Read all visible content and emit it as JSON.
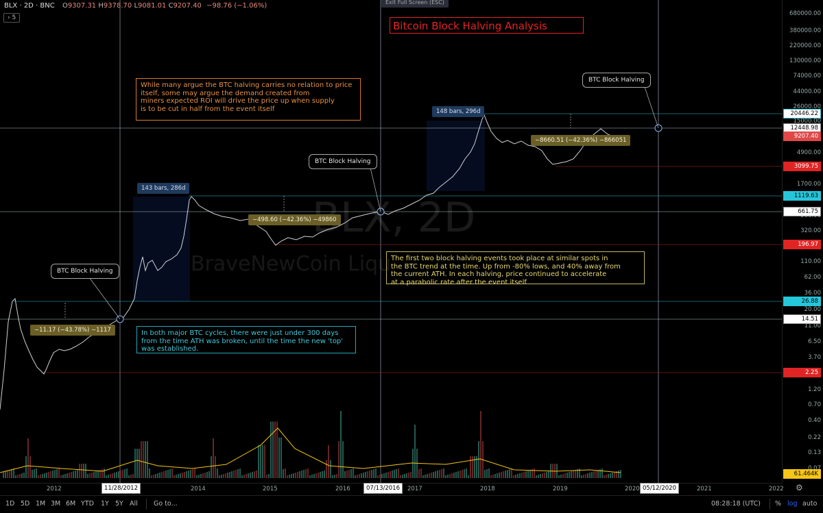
{
  "header": {
    "symbol": "BLX · 2D · BNC",
    "open": "9307.31",
    "high": "9378.70",
    "low": "9081.01",
    "close": "9207.40",
    "change": "−98.76 (−1.06%)",
    "interval_badge": "5"
  },
  "exit_fullscreen": "Exit Full Screen (ESC)",
  "title": "Bitcoin Block Halving Analysis",
  "watermark": {
    "line1": "BLX, 2D",
    "line2": "BraveNewCoin Liqu"
  },
  "notes": {
    "note1": "While many argue the BTC halving carries no relation to price\nitself, some may argue the demand created from\nminers expected ROI will drive the price up when supply\nis to be cut in half from the event itself",
    "note2": "The first two block halving events took place at similar spots in\nthe BTC trend at the time. Up from -80% lows, and 40% away from\nthe current ATH. In each halving, price continued to accelerate\nat a parabolic rate after the event itself",
    "note3": "In both major BTC cycles, there were just under 300 days\nfrom the time ATH was broken, until the time the new 'top'\nwas established."
  },
  "callouts": [
    "BTC Block Halving",
    "BTC Block Halving",
    "BTC Block Halving"
  ],
  "range_labels": [
    "143 bars, 286d",
    "148 bars, 296d"
  ],
  "measure_labels": [
    "−11.17 (−43.78%) −1117",
    "−498.60 (−42.36%) −49860",
    "−8660.51 (−42.36%) −866051"
  ],
  "price_ticks": [
    "680000.00",
    "380000.00",
    "220000.00",
    "130000.00",
    "74000.00",
    "44000.00",
    "26000.00",
    "15000.00",
    "4900.00",
    "2900.00",
    "1700.00",
    "560.00",
    "320.00",
    "110.00",
    "62.00",
    "36.00",
    "20.00",
    "11.00",
    "6.50",
    "3.70",
    "1.20",
    "0.70",
    "0.40",
    "0.22",
    "0.13",
    "0.07"
  ],
  "price_tags": [
    {
      "label": "20446.22",
      "bg": "#ffffff",
      "fg": "#000",
      "border": "#26c6da"
    },
    {
      "label": "12448.98",
      "bg": "#ffffff",
      "fg": "#000",
      "border": "#888"
    },
    {
      "label": "9207.40",
      "bg": "#e04848",
      "fg": "#fff",
      "border": "#e04848"
    },
    {
      "label": "3099.75",
      "bg": "#e02424",
      "fg": "#fff",
      "border": "#e02424"
    },
    {
      "label": "1119.63",
      "bg": "#26c6da",
      "fg": "#000",
      "border": "#26c6da"
    },
    {
      "label": "661.75",
      "bg": "#ffffff",
      "fg": "#000",
      "border": "#888"
    },
    {
      "label": "196.97",
      "bg": "#e02424",
      "fg": "#fff",
      "border": "#e02424"
    },
    {
      "label": "26.88",
      "bg": "#26c6da",
      "fg": "#000",
      "border": "#26c6da"
    },
    {
      "label": "14.51",
      "bg": "#ffffff",
      "fg": "#000",
      "border": "#888"
    },
    {
      "label": "2.25",
      "bg": "#e02424",
      "fg": "#fff",
      "border": "#e02424"
    },
    {
      "label": "61.464K",
      "bg": "#f5c518",
      "fg": "#000",
      "border": "#f5c518"
    }
  ],
  "time_ticks": [
    "2012",
    "2014",
    "2015",
    "2016",
    "2017",
    "2018",
    "2019",
    "2020",
    "2021",
    "2022"
  ],
  "time_boxes": [
    "11/28/2012",
    "07/13/2016",
    "05/12/2020"
  ],
  "toolbar": {
    "timeframes": [
      "1D",
      "5D",
      "1M",
      "3M",
      "6M",
      "YTD",
      "1Y",
      "5Y",
      "All"
    ],
    "goto": "Go to...",
    "clock": "08:28:18 (UTC)",
    "percent": "%",
    "log": "log",
    "auto": "auto"
  },
  "colors": {
    "accent_blue": "#2962ff",
    "cyan": "#26c6da",
    "red": "#e02424",
    "gold": "#c9b85a",
    "orange": "#d97a2a"
  }
}
